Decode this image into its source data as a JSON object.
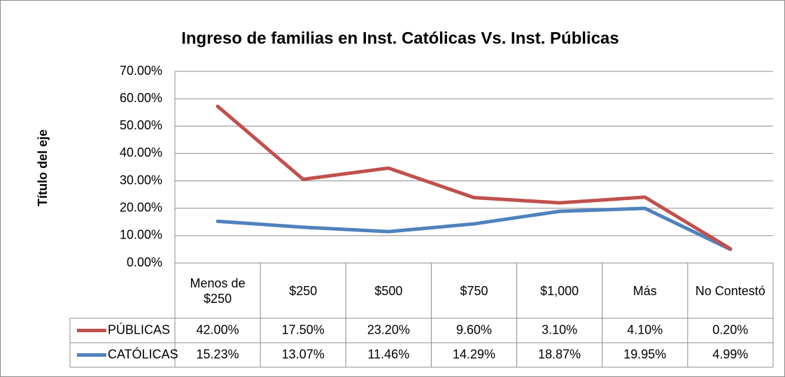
{
  "chart_data": {
    "type": "line",
    "stacked": true,
    "title": "Ingreso de familias en Inst. Católicas Vs. Inst. Públicas",
    "y_label": "Título del eje",
    "categories": [
      "Menos de $250",
      "$250",
      "$500",
      "$750",
      "$1,000",
      "Más",
      "No Contestó"
    ],
    "series": [
      {
        "name": "PÚBLICAS",
        "color": "#c0504d",
        "values": [
          42.0,
          17.5,
          23.2,
          9.6,
          3.1,
          4.1,
          0.2
        ],
        "value_labels": [
          "42.00%",
          "17.50%",
          "23.20%",
          "9.60%",
          "3.10%",
          "4.10%",
          "0.20%"
        ]
      },
      {
        "name": "CATÓLICAS",
        "color": "#4f81bd",
        "values": [
          15.23,
          13.07,
          11.46,
          14.29,
          18.87,
          19.95,
          4.99
        ],
        "value_labels": [
          "15.23%",
          "13.07%",
          "11.46%",
          "14.29%",
          "18.87%",
          "19.95%",
          "4.99%"
        ]
      }
    ],
    "ylim": [
      0,
      70
    ],
    "yticks": [
      {
        "value": 0,
        "label": "0.00%"
      },
      {
        "value": 10,
        "label": "10.00%"
      },
      {
        "value": 20,
        "label": "20.00%"
      },
      {
        "value": 30,
        "label": "30.00%"
      },
      {
        "value": 40,
        "label": "40.00%"
      },
      {
        "value": 50,
        "label": "50.00%"
      },
      {
        "value": 60,
        "label": "60.00%"
      },
      {
        "value": 70,
        "label": "70.00%"
      }
    ],
    "grid": true
  }
}
